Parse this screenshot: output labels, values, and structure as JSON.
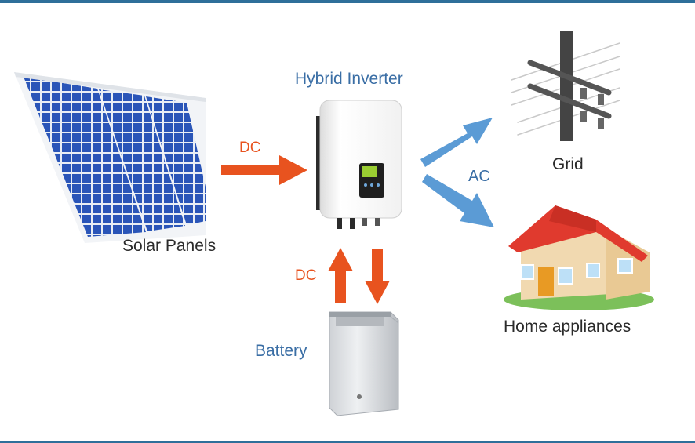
{
  "labels": {
    "inverter": "Hybrid Inverter",
    "solar": "Solar Panels",
    "grid": "Grid",
    "home": "Home appliances",
    "battery": "Battery",
    "dc_solar": "DC",
    "dc_battery": "DC",
    "ac": "AC"
  },
  "colors": {
    "dc_arrow": "#e8531f",
    "ac_arrow": "#5b9bd5",
    "frame": "#2f6f9a",
    "panel_cell": "#2a55b8",
    "roof": "#e03a2e"
  },
  "icons": {
    "solar": "solar-panels-icon",
    "inverter": "hybrid-inverter-icon",
    "grid": "power-pole-icon",
    "home": "house-icon",
    "battery": "battery-cabinet-icon"
  }
}
